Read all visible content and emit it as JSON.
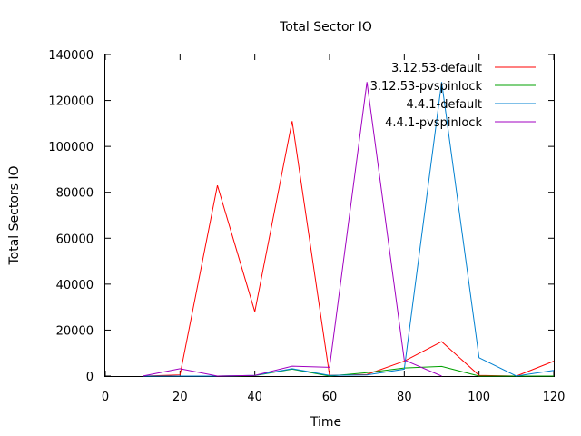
{
  "chart_data": {
    "type": "line",
    "title": "Total Sector IO",
    "xlabel": "Time",
    "ylabel": "Total Sectors IO",
    "xlim": [
      0,
      120
    ],
    "ylim": [
      0,
      140000
    ],
    "xticks": [
      0,
      20,
      40,
      60,
      80,
      100,
      120
    ],
    "yticks": [
      0,
      20000,
      40000,
      60000,
      80000,
      100000,
      120000,
      140000
    ],
    "grid": false,
    "legend_position": "top-right",
    "series": [
      {
        "name": "3.12.53-default",
        "color": "#ff0000",
        "x": [
          10,
          20,
          30,
          40,
          50,
          60,
          70,
          80,
          90,
          100,
          110,
          120
        ],
        "y": [
          0,
          500,
          83000,
          28000,
          111000,
          300,
          700,
          6500,
          15000,
          300,
          0,
          6500
        ]
      },
      {
        "name": "3.12.53-pvspinlock",
        "color": "#00a000",
        "x": [
          10,
          20,
          30,
          40,
          50,
          60,
          70,
          80,
          90,
          100,
          110,
          120
        ],
        "y": [
          0,
          0,
          0,
          200,
          3000,
          0,
          1500,
          3500,
          4200,
          0,
          0,
          0
        ]
      },
      {
        "name": "4.4.1-default",
        "color": "#0080d0",
        "x": [
          10,
          20,
          30,
          40,
          50,
          60,
          70,
          80,
          90,
          100,
          110,
          120
        ],
        "y": [
          0,
          0,
          0,
          300,
          3200,
          300,
          500,
          3000,
          128000,
          8000,
          0,
          2500
        ]
      },
      {
        "name": "4.4.1-pvspinlock",
        "color": "#a000c0",
        "x": [
          10,
          20,
          30,
          40,
          50,
          60,
          70,
          80,
          90
        ],
        "y": [
          0,
          3200,
          0,
          300,
          4300,
          3800,
          128000,
          7000,
          0
        ]
      }
    ]
  }
}
